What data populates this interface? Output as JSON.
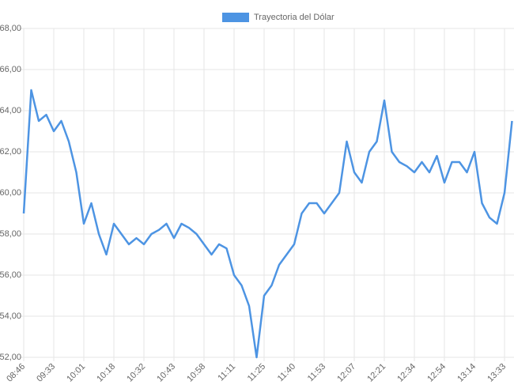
{
  "chart_data": {
    "type": "line",
    "series": [
      {
        "name": "Trayectoria del Dólar",
        "color": "#4d94e3",
        "values": [
          59.0,
          65.0,
          63.5,
          63.8,
          63.0,
          63.5,
          62.5,
          61.0,
          58.5,
          59.5,
          58.0,
          57.0,
          58.5,
          58.0,
          57.5,
          57.8,
          57.5,
          58.0,
          58.2,
          58.5,
          57.8,
          58.5,
          58.3,
          58.0,
          57.5,
          57.0,
          57.5,
          57.3,
          56.0,
          55.5,
          54.5,
          52.0,
          55.0,
          55.5,
          56.5,
          57.0,
          57.5,
          59.0,
          59.5,
          59.5,
          59.0,
          59.5,
          60.0,
          62.5,
          61.0,
          60.5,
          62.0,
          62.5,
          64.5,
          62.0,
          61.5,
          61.3,
          61.0,
          61.5,
          61.0,
          61.8,
          60.5,
          61.5,
          61.5,
          61.0,
          62.0,
          59.5,
          58.8,
          58.5,
          60.0,
          63.5
        ]
      }
    ],
    "categories": [
      "08:46",
      null,
      null,
      null,
      "09:33",
      null,
      null,
      null,
      "10:01",
      null,
      null,
      null,
      "10:18",
      null,
      null,
      null,
      "10:32",
      null,
      null,
      null,
      "10:43",
      null,
      null,
      null,
      "10:58",
      null,
      null,
      null,
      "11:11",
      null,
      null,
      null,
      "11:25",
      null,
      null,
      null,
      "11:40",
      null,
      null,
      null,
      "11:53",
      null,
      null,
      null,
      "12:07",
      null,
      null,
      null,
      "12:21",
      null,
      null,
      null,
      "12:34",
      null,
      null,
      null,
      "12:54",
      null,
      null,
      null,
      "13:14",
      null,
      null,
      null,
      "13:33",
      null
    ],
    "ylim": [
      52,
      68
    ],
    "yticks": [
      {
        "value": 52,
        "label": "52,00"
      },
      {
        "value": 54,
        "label": "54,00"
      },
      {
        "value": 56,
        "label": "56,00"
      },
      {
        "value": 58,
        "label": "58,00"
      },
      {
        "value": 60,
        "label": "60,00"
      },
      {
        "value": 62,
        "label": "62,00"
      },
      {
        "value": 64,
        "label": "64,00"
      },
      {
        "value": 66,
        "label": "66,00"
      },
      {
        "value": 68,
        "label": "68,00"
      }
    ],
    "grid": true,
    "legend": "top"
  }
}
